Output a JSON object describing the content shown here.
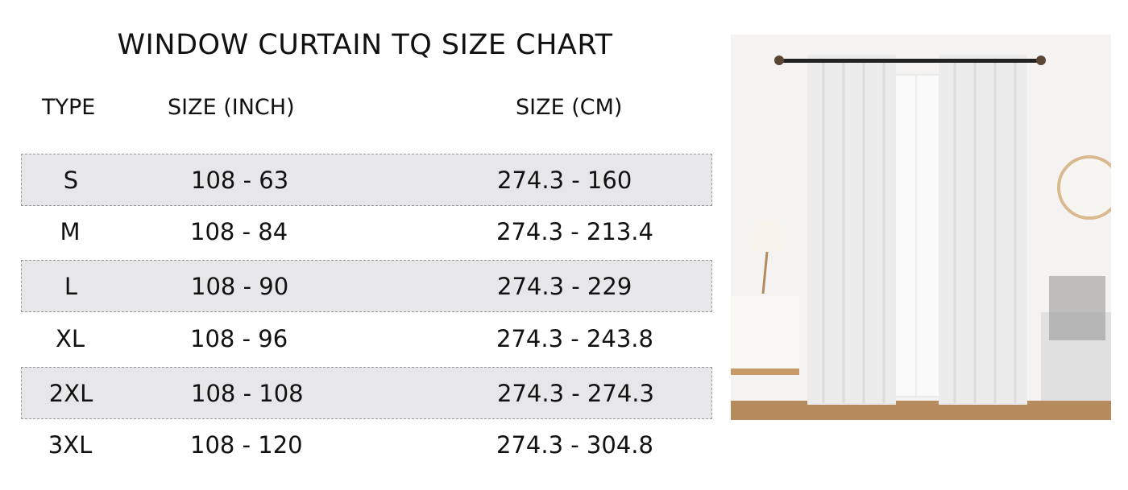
{
  "title": "WINDOW CURTAIN TQ SIZE CHART",
  "headers": {
    "type": "TYPE",
    "inch": "SIZE (INCH)",
    "cm": "SIZE (CM)"
  },
  "rows": [
    {
      "type": "S",
      "inch": "108 - 63",
      "cm": "274.3 - 160"
    },
    {
      "type": "M",
      "inch": "108 - 84",
      "cm": "274.3 - 213.4"
    },
    {
      "type": "L",
      "inch": "108 - 90",
      "cm": "274.3 - 229"
    },
    {
      "type": "XL",
      "inch": "108 - 96",
      "cm": "274.3 - 243.8"
    },
    {
      "type": "2XL",
      "inch": "108 - 108",
      "cm": "274.3 - 274.3"
    },
    {
      "type": "3XL",
      "inch": "108 - 120",
      "cm": "274.3 - 304.8"
    }
  ],
  "colors": {
    "row_shade": "#e7e7e9",
    "curtain": "#efefef",
    "rod": "#222222"
  }
}
